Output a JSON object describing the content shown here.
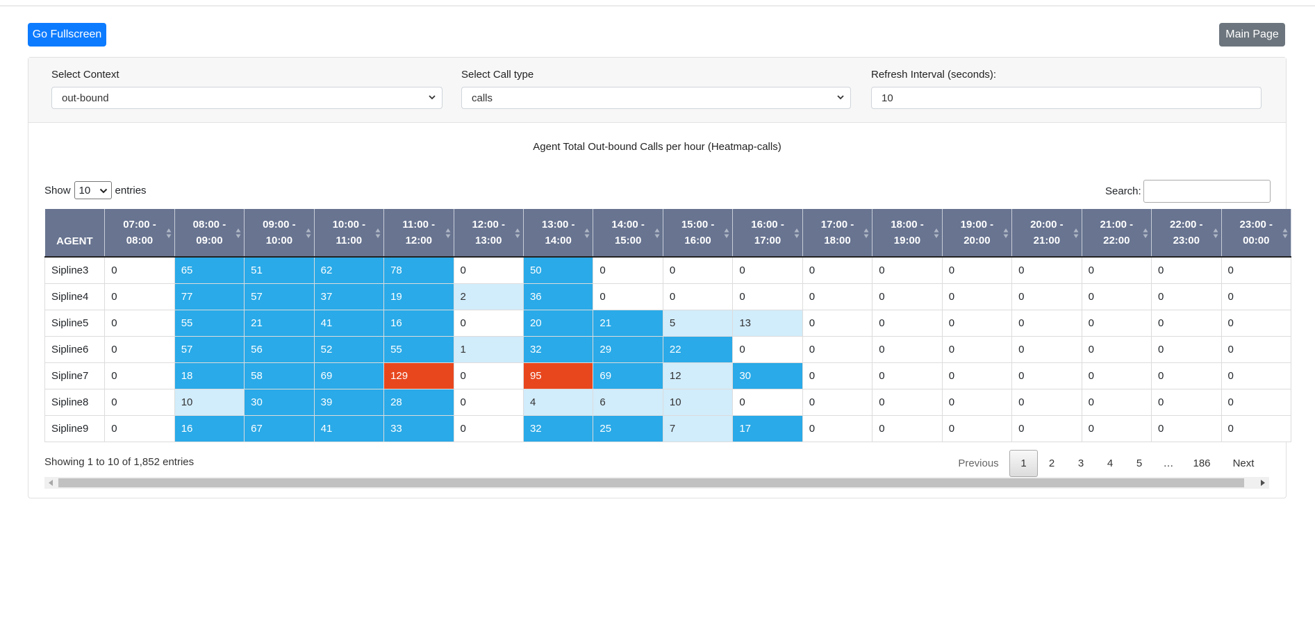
{
  "buttons": {
    "fullscreen": "Go Fullscreen",
    "main_page": "Main Page"
  },
  "filters": {
    "context": {
      "label": "Select Context",
      "value": "out-bound"
    },
    "call_type": {
      "label": "Select Call type",
      "value": "calls"
    },
    "refresh": {
      "label": "Refresh Interval (seconds):",
      "value": "10"
    }
  },
  "chart_title": "Agent Total Out-bound Calls per hour (Heatmap-calls)",
  "table_controls": {
    "show": "Show",
    "length": "10",
    "entries": "entries",
    "search_label": "Search:"
  },
  "table": {
    "headers": [
      "AGENT",
      "07:00 - 08:00",
      "08:00 - 09:00",
      "09:00 - 10:00",
      "10:00 - 11:00",
      "11:00 - 12:00",
      "12:00 - 13:00",
      "13:00 - 14:00",
      "14:00 - 15:00",
      "15:00 - 16:00",
      "16:00 - 17:00",
      "17:00 - 18:00",
      "18:00 - 19:00",
      "19:00 - 20:00",
      "20:00 - 21:00",
      "21:00 - 22:00",
      "22:00 - 23:00",
      "23:00 - 00:00"
    ],
    "rows": [
      {
        "agent": "Sipline3",
        "values": [
          0,
          65,
          51,
          62,
          78,
          0,
          50,
          0,
          0,
          0,
          0,
          0,
          0,
          0,
          0,
          0,
          0
        ]
      },
      {
        "agent": "Sipline4",
        "values": [
          0,
          77,
          57,
          37,
          19,
          2,
          36,
          0,
          0,
          0,
          0,
          0,
          0,
          0,
          0,
          0,
          0
        ]
      },
      {
        "agent": "Sipline5",
        "values": [
          0,
          55,
          21,
          41,
          16,
          0,
          20,
          21,
          5,
          13,
          0,
          0,
          0,
          0,
          0,
          0,
          0
        ]
      },
      {
        "agent": "Sipline6",
        "values": [
          0,
          57,
          56,
          52,
          55,
          1,
          32,
          29,
          22,
          0,
          0,
          0,
          0,
          0,
          0,
          0,
          0
        ]
      },
      {
        "agent": "Sipline7",
        "values": [
          0,
          18,
          58,
          69,
          129,
          0,
          95,
          69,
          12,
          30,
          0,
          0,
          0,
          0,
          0,
          0,
          0
        ]
      },
      {
        "agent": "Sipline8",
        "values": [
          0,
          10,
          30,
          39,
          28,
          0,
          4,
          6,
          10,
          0,
          0,
          0,
          0,
          0,
          0,
          0,
          0
        ]
      },
      {
        "agent": "Sipline9",
        "values": [
          0,
          16,
          67,
          41,
          33,
          0,
          32,
          25,
          7,
          17,
          0,
          0,
          0,
          0,
          0,
          0,
          0
        ]
      }
    ]
  },
  "colors": {
    "zero": "#ffffff",
    "low": "#d1ecfb",
    "mid": "#2aaae8",
    "high": "#e8471e"
  },
  "info": "Showing 1 to 10 of 1,852 entries",
  "pagination": {
    "previous": "Previous",
    "pages": [
      "1",
      "2",
      "3",
      "4",
      "5",
      "…",
      "186"
    ],
    "next": "Next"
  }
}
